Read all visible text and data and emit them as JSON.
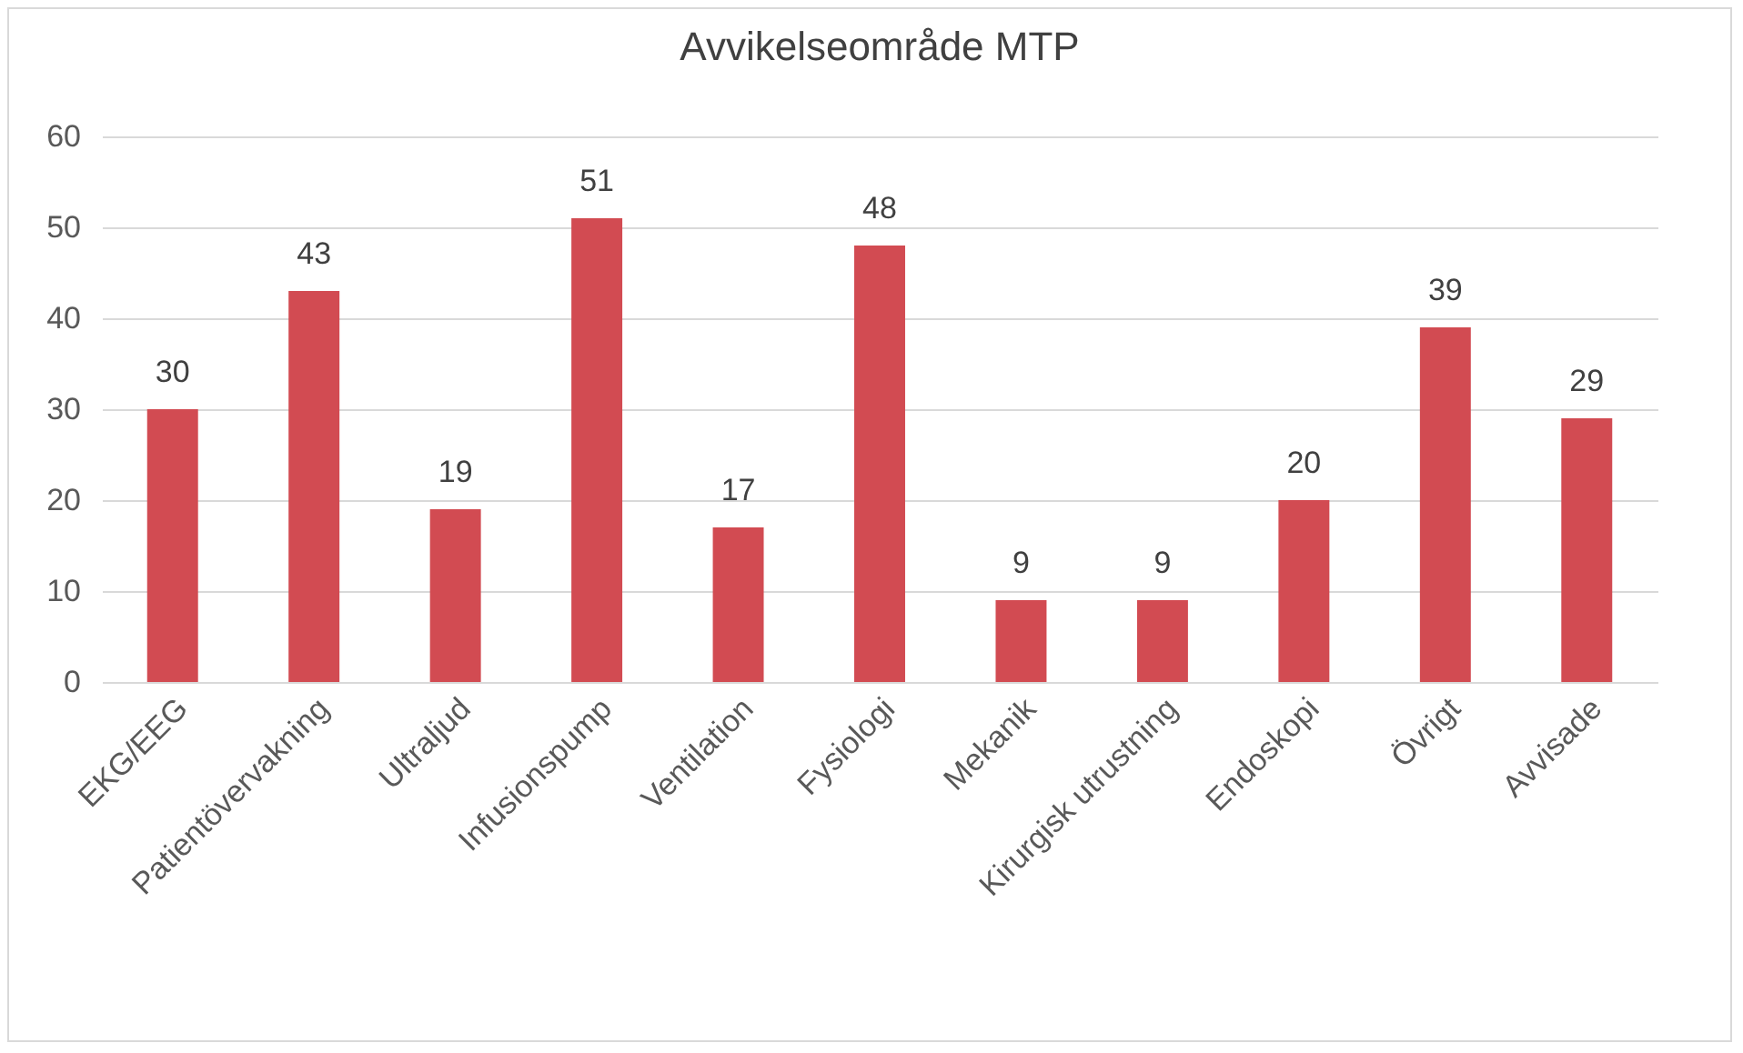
{
  "chart_data": {
    "type": "bar",
    "title": "Avvikelseområde MTP",
    "categories": [
      "EKG/EEG",
      "Patientövervakning",
      "Ultraljud",
      "Infusionspump",
      "Ventilation",
      "Fysiologi",
      "Mekanik",
      "Kirurgisk utrustning",
      "Endoskopi",
      "Övrigt",
      "Avvisade"
    ],
    "values": [
      30,
      43,
      19,
      51,
      17,
      48,
      9,
      9,
      20,
      39,
      29
    ],
    "color": "#d24b52",
    "ylim": [
      0,
      60
    ],
    "yticks": [
      0,
      10,
      20,
      30,
      40,
      50,
      60
    ],
    "grid": "y",
    "data_labels": true
  }
}
